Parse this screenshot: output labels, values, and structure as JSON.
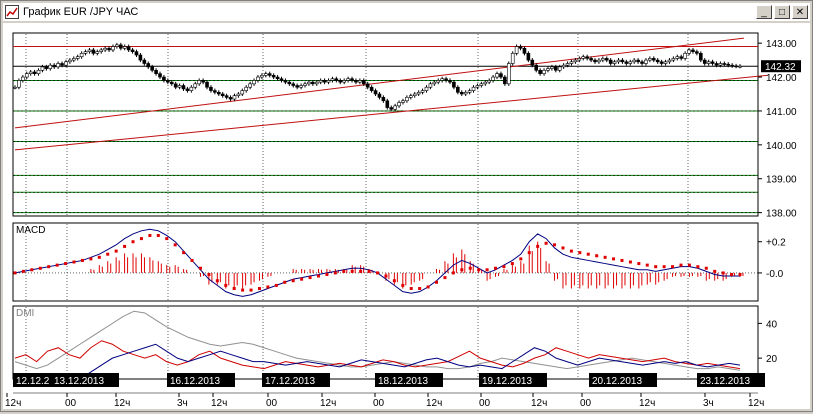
{
  "window": {
    "title": "График EUR /JPY  ЧАС",
    "buttons": {
      "minimize": "_",
      "maximize": "□",
      "close": "✕"
    }
  },
  "chart_data": [
    {
      "type": "candlestick",
      "panel": "price",
      "ylim": [
        137.9,
        143.3
      ],
      "yticks": [
        "143.00",
        "142.00",
        "141.00",
        "140.00",
        "139.00",
        "138.00"
      ],
      "current_price": "142.32",
      "horizontal_lines": {
        "red": [
          142.9
        ],
        "black": [
          142.32
        ],
        "green": [
          141.9,
          141.0,
          140.1,
          139.1,
          138.6,
          138.0
        ]
      },
      "trend_lines": [
        {
          "from": [
            0,
            140.5
          ],
          "to": [
            186,
            143.15
          ],
          "color": "#c01010"
        },
        {
          "from": [
            0,
            139.85
          ],
          "to": [
            192,
            142.05
          ],
          "color": "#c01010"
        }
      ],
      "series": [
        {
          "close": [
            141.7,
            141.9,
            142.0,
            142.1,
            142.15,
            142.1,
            142.2,
            142.3,
            142.25,
            142.35,
            142.3,
            142.4,
            142.35,
            142.45,
            142.5,
            142.55,
            142.6,
            142.7,
            142.75,
            142.8,
            142.7,
            142.75,
            142.8,
            142.85,
            142.8,
            142.9,
            142.95,
            142.85,
            142.9,
            142.8,
            142.75,
            142.65,
            142.5,
            142.4,
            142.3,
            142.2,
            142.1,
            142.0,
            141.9,
            141.85,
            141.8,
            141.7,
            141.75,
            141.65,
            141.6,
            141.7,
            141.8,
            141.9,
            141.85,
            141.7,
            141.6,
            141.55,
            141.5,
            141.45,
            141.4,
            141.35,
            141.45,
            141.5,
            141.6,
            141.7,
            141.8,
            141.9,
            142.0,
            142.05,
            142.1,
            142.05,
            142.0,
            141.95,
            141.9,
            141.85,
            141.8,
            141.75,
            141.7,
            141.75,
            141.8,
            141.85,
            141.8,
            141.85,
            141.9,
            141.85,
            141.9,
            141.95,
            141.9,
            141.85,
            141.9,
            141.95,
            141.9,
            141.85,
            141.9,
            141.8,
            141.7,
            141.6,
            141.5,
            141.4,
            141.3,
            141.1,
            141.05,
            141.15,
            141.25,
            141.3,
            141.4,
            141.45,
            141.5,
            141.55,
            141.6,
            141.7,
            141.8,
            141.85,
            141.9,
            141.95,
            141.9,
            141.85,
            141.7,
            141.55,
            141.5,
            141.55,
            141.6,
            141.7,
            141.75,
            141.8,
            141.85,
            141.9,
            142.0,
            142.1,
            142.0,
            141.8,
            142.4,
            142.7,
            142.9,
            142.85,
            142.7,
            142.5,
            142.35,
            142.2,
            142.1,
            142.2,
            142.25,
            142.3,
            142.2,
            142.3,
            142.35,
            142.4,
            142.45,
            142.5,
            142.55,
            142.6,
            142.55,
            142.5,
            142.45,
            142.5,
            142.55,
            142.5,
            142.4,
            142.45,
            142.5,
            142.45,
            142.4,
            142.45,
            142.5,
            142.45,
            142.4,
            142.5,
            142.55,
            142.5,
            142.45,
            142.4,
            142.45,
            142.5,
            142.55,
            142.6,
            142.55,
            142.7,
            142.8,
            142.75,
            142.7,
            142.5,
            142.4,
            142.45,
            142.4,
            142.35,
            142.4,
            142.38,
            142.35,
            142.33,
            142.32,
            142.32
          ]
        }
      ]
    },
    {
      "type": "histogram+line",
      "panel": "indicator",
      "title": "MACD",
      "yticks": [
        "+0.2",
        "-0.0"
      ],
      "series": [
        {
          "values": [
            0.0,
            0.01,
            0.02,
            0.03,
            0.04,
            0.05,
            0.06,
            0.07,
            0.08,
            0.1,
            0.12,
            0.15,
            0.18,
            0.22,
            0.25,
            0.27,
            0.28,
            0.27,
            0.24,
            0.2,
            0.14,
            0.08,
            0.02,
            -0.04,
            -0.08,
            -0.12,
            -0.14,
            -0.15,
            -0.14,
            -0.12,
            -0.1,
            -0.08,
            -0.06,
            -0.04,
            -0.03,
            -0.02,
            -0.01,
            0.0,
            0.01,
            0.02,
            0.03,
            0.03,
            0.02,
            0.0,
            -0.04,
            -0.08,
            -0.12,
            -0.13,
            -0.12,
            -0.09,
            -0.05,
            0.0,
            0.05,
            0.08,
            0.06,
            0.03,
            0.0,
            0.02,
            0.05,
            0.08,
            0.12,
            0.2,
            0.25,
            0.22,
            0.16,
            0.12,
            0.1,
            0.09,
            0.08,
            0.07,
            0.06,
            0.05,
            0.04,
            0.03,
            0.02,
            0.02,
            0.01,
            0.02,
            0.03,
            0.04,
            0.04,
            0.03,
            0.01,
            -0.01,
            -0.02,
            -0.02,
            -0.02
          ]
        },
        {
          "values": [
            0.0,
            0.01,
            0.02,
            0.03,
            0.04,
            0.05,
            0.06,
            0.07,
            0.08,
            0.09,
            0.1,
            0.12,
            0.14,
            0.17,
            0.2,
            0.22,
            0.24,
            0.24,
            0.22,
            0.18,
            0.13,
            0.08,
            0.03,
            -0.01,
            -0.05,
            -0.08,
            -0.1,
            -0.11,
            -0.11,
            -0.1,
            -0.09,
            -0.08,
            -0.06,
            -0.05,
            -0.04,
            -0.03,
            -0.02,
            -0.01,
            0.0,
            0.01,
            0.01,
            0.01,
            0.01,
            0.0,
            -0.02,
            -0.05,
            -0.08,
            -0.1,
            -0.1,
            -0.09,
            -0.06,
            -0.03,
            0.0,
            0.02,
            0.03,
            0.02,
            0.02,
            0.03,
            0.04,
            0.06,
            0.09,
            0.13,
            0.17,
            0.19,
            0.18,
            0.16,
            0.14,
            0.13,
            0.12,
            0.11,
            0.1,
            0.09,
            0.08,
            0.07,
            0.06,
            0.05,
            0.04,
            0.04,
            0.04,
            0.05,
            0.05,
            0.04,
            0.03,
            0.01,
            0.0,
            -0.01,
            -0.01
          ]
        }
      ]
    },
    {
      "type": "line",
      "panel": "indicator",
      "title": "DMI",
      "yticks": [
        "40",
        "20"
      ],
      "series": [
        {
          "values": [
            18,
            16,
            14,
            16,
            20,
            24,
            28,
            32,
            36,
            40,
            44,
            47,
            46,
            42,
            38,
            35,
            32,
            30,
            28,
            27,
            28,
            29,
            28,
            26,
            24,
            22,
            20,
            19,
            18,
            17,
            16,
            15,
            15,
            16,
            17,
            18,
            17,
            16,
            15,
            15,
            14,
            14,
            15,
            17,
            18,
            20,
            19,
            18,
            17,
            16,
            15,
            14,
            15,
            16,
            17,
            18,
            19,
            20,
            19,
            18,
            17,
            16,
            15,
            14,
            14,
            15,
            14,
            13
          ]
        },
        {
          "values": [
            20,
            22,
            18,
            24,
            26,
            22,
            20,
            26,
            30,
            28,
            24,
            22,
            20,
            22,
            18,
            16,
            18,
            22,
            24,
            20,
            18,
            16,
            15,
            14,
            16,
            18,
            17,
            16,
            15,
            16,
            17,
            16,
            15,
            17,
            19,
            18,
            16,
            15,
            16,
            17,
            18,
            21,
            24,
            20,
            18,
            16,
            15,
            17,
            20,
            22,
            26,
            24,
            22,
            20,
            22,
            21,
            20,
            19,
            18,
            19,
            20,
            18,
            17,
            16,
            17,
            16,
            15,
            14
          ]
        },
        {
          "values": [
            10,
            8,
            6,
            5,
            4,
            5,
            8,
            12,
            16,
            20,
            22,
            24,
            26,
            28,
            24,
            20,
            18,
            20,
            22,
            24,
            22,
            20,
            18,
            18,
            17,
            16,
            17,
            18,
            17,
            16,
            15,
            17,
            19,
            18,
            17,
            16,
            15,
            17,
            19,
            20,
            18,
            16,
            15,
            16,
            15,
            14,
            18,
            22,
            26,
            24,
            20,
            18,
            16,
            18,
            20,
            19,
            18,
            17,
            16,
            17,
            18,
            17,
            18,
            16,
            15,
            16,
            17,
            16
          ]
        }
      ]
    }
  ],
  "date_labels": [
    "12.12.2",
    "13.12.2013",
    "16.12.2013",
    "17.12.2013",
    "18.12.2013",
    "19.12.2013",
    "20.12.2013",
    "23.12.2013"
  ],
  "hour_labels": [
    "12ч",
    "00",
    "12ч",
    "3ч",
    "12ч",
    "00",
    "12ч",
    "00",
    "12ч",
    "00",
    "12ч",
    "00",
    "12ч",
    "3ч",
    "12ч"
  ]
}
